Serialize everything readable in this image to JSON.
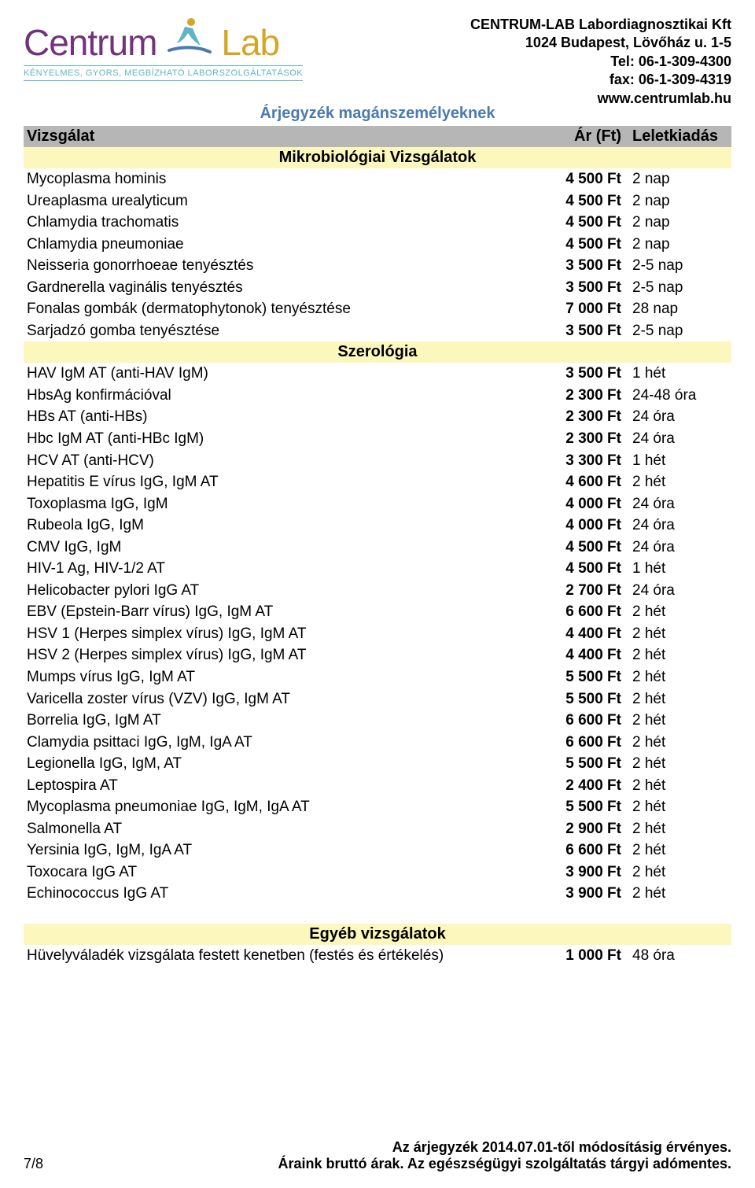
{
  "company": {
    "logo_left": "Centrum",
    "logo_right": "Lab",
    "tagline": "KÉNYELMES, GYORS, MEGBÍZHATÓ LABORSZOLGÁLTATÁSOK",
    "name": "CENTRUM-LAB Labordiagnosztikai Kft",
    "address": "1024 Budapest, Lövőház u. 1-5",
    "tel": "Tel: 06-1-309-4300",
    "fax": "fax: 06-1-309-4319",
    "web": "www.centrumlab.hu"
  },
  "title": "Árjegyzék magánszemélyeknek",
  "columns": {
    "c1": "Vizsgálat",
    "c2": "Ár (Ft)",
    "c3": "Leletkiadás"
  },
  "sections": [
    {
      "heading": "Mikrobiológiai Vizsgálatok",
      "rows": [
        {
          "name": "Mycoplasma hominis",
          "price": "4 500 Ft",
          "turn": "2 nap"
        },
        {
          "name": "Ureaplasma urealyticum",
          "price": "4 500 Ft",
          "turn": "2 nap"
        },
        {
          "name": "Chlamydia trachomatis",
          "price": "4 500 Ft",
          "turn": "2 nap"
        },
        {
          "name": "Chlamydia pneumoniae",
          "price": "4 500 Ft",
          "turn": "2 nap"
        },
        {
          "name": "Neisseria gonorrhoeae tenyésztés",
          "price": "3 500 Ft",
          "turn": "2-5 nap"
        },
        {
          "name": "Gardnerella vaginális tenyésztés",
          "price": "3 500 Ft",
          "turn": "2-5 nap"
        },
        {
          "name": "Fonalas gombák (dermatophytonok) tenyésztése",
          "price": "7 000 Ft",
          "turn": "28 nap"
        },
        {
          "name": "Sarjadzó gomba tenyésztése",
          "price": "3 500 Ft",
          "turn": "2-5 nap"
        }
      ]
    },
    {
      "heading": "Szerológia",
      "rows": [
        {
          "name": "HAV IgM AT (anti-HAV IgM)",
          "price": "3 500 Ft",
          "turn": "1 hét"
        },
        {
          "name": "HbsAg konfirmációval",
          "price": "2 300 Ft",
          "turn": "24-48 óra"
        },
        {
          "name": "HBs AT (anti-HBs)",
          "price": "2 300 Ft",
          "turn": "24 óra"
        },
        {
          "name": "Hbc IgM  AT (anti-HBc IgM)",
          "price": "2 300 Ft",
          "turn": "24 óra"
        },
        {
          "name": "HCV AT (anti-HCV)",
          "price": "3 300 Ft",
          "turn": "1 hét"
        },
        {
          "name": "Hepatitis E vírus IgG, IgM  AT",
          "price": "4 600 Ft",
          "turn": "2 hét"
        },
        {
          "name": "Toxoplasma IgG, IgM",
          "price": "4 000 Ft",
          "turn": "24 óra"
        },
        {
          "name": "Rubeola IgG, IgM",
          "price": "4 000 Ft",
          "turn": "24 óra"
        },
        {
          "name": "CMV IgG, IgM",
          "price": "4 500 Ft",
          "turn": "24 óra"
        },
        {
          "name": "HIV-1 Ag, HIV-1/2 AT",
          "price": "4 500 Ft",
          "turn": "1 hét"
        },
        {
          "name": "Helicobacter pylori IgG AT",
          "price": "2 700 Ft",
          "turn": "24 óra"
        },
        {
          "name": "EBV (Epstein-Barr vírus) IgG, IgM AT",
          "price": "6 600 Ft",
          "turn": "2 hét"
        },
        {
          "name": "HSV 1 (Herpes simplex vírus) IgG, IgM AT",
          "price": "4 400 Ft",
          "turn": "2 hét"
        },
        {
          "name": "HSV 2 (Herpes simplex vírus) IgG, IgM AT",
          "price": "4 400 Ft",
          "turn": "2 hét"
        },
        {
          "name": "Mumps vírus IgG, IgM  AT",
          "price": "5 500 Ft",
          "turn": "2 hét"
        },
        {
          "name": "Varicella zoster vírus (VZV) IgG, IgM  AT",
          "price": "5 500 Ft",
          "turn": "2 hét"
        },
        {
          "name": "Borrelia IgG, IgM  AT",
          "price": "6 600 Ft",
          "turn": "2 hét"
        },
        {
          "name": "Clamydia psittaci IgG, IgM, IgA  AT",
          "price": "6 600 Ft",
          "turn": "2 hét"
        },
        {
          "name": "Legionella IgG, IgM,  AT",
          "price": "5 500 Ft",
          "turn": "2 hét"
        },
        {
          "name": "Leptospira AT",
          "price": "2 400 Ft",
          "turn": "2 hét"
        },
        {
          "name": "Mycoplasma pneumoniae IgG, IgM, IgA  AT",
          "price": "5 500 Ft",
          "turn": "2 hét"
        },
        {
          "name": "Salmonella AT",
          "price": "2 900 Ft",
          "turn": "2 hét"
        },
        {
          "name": "Yersinia IgG, IgM, IgA  AT",
          "price": "6 600 Ft",
          "turn": "2 hét"
        },
        {
          "name": "Toxocara IgG AT",
          "price": "3 900 Ft",
          "turn": "2 hét"
        },
        {
          "name": "Echinococcus IgG AT",
          "price": "3 900 Ft",
          "turn": "2 hét"
        }
      ]
    },
    {
      "heading": "Egyéb vizsgálatok",
      "spacer_before": true,
      "rows": [
        {
          "name": "Hüvelyváladék vizsgálata festett kenetben (festés és értékelés)",
          "price": "1 000 Ft",
          "turn": "48 óra"
        }
      ]
    }
  ],
  "footer": {
    "valid": "Az árjegyzék 2014.07.01-től módosításig érvényes.",
    "note": "Áraink bruttó árak. Az egészségügyi szolgáltatás tárgyi adómentes.",
    "page": "7/8"
  },
  "colors": {
    "header_bg": "#b6b6b6",
    "section_bg": "#fcf7bd",
    "title_color": "#4a7ab0",
    "logo_purple": "#72337d",
    "logo_gold": "#d4a628",
    "tagline_color": "#5fb5c6"
  }
}
